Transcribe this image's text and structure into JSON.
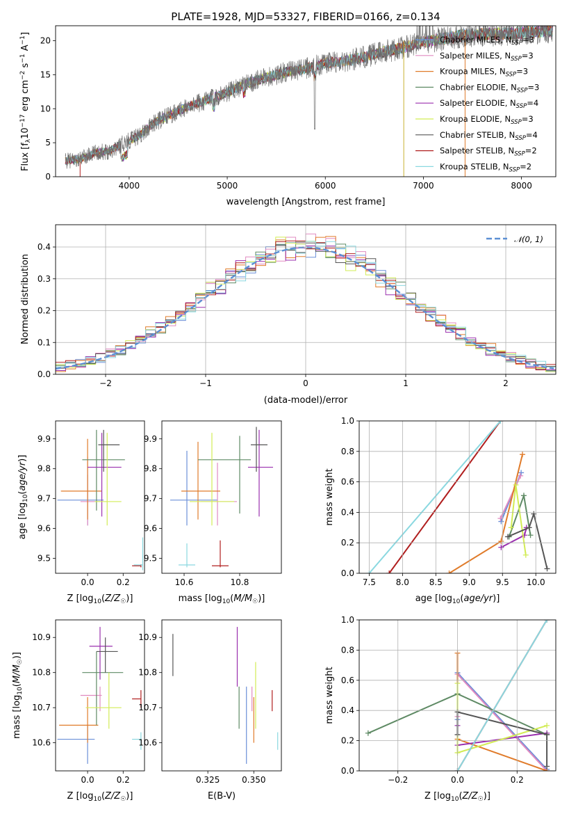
{
  "figure": {
    "title": "PLATE=1928, MJD=53327, FIBERID=0166, z=0.134"
  },
  "models": [
    {
      "name": "Chabrier MILES",
      "nssp": "3",
      "color": "#6a8fd8"
    },
    {
      "name": "Salpeter MILES",
      "nssp": "3",
      "color": "#e08ac0"
    },
    {
      "name": "Kroupa MILES",
      "nssp": "3",
      "color": "#e07b2a"
    },
    {
      "name": "Chabrier ELODIE",
      "nssp": "3",
      "color": "#5e8a64"
    },
    {
      "name": "Salpeter ELODIE",
      "nssp": "4",
      "color": "#9a2fae"
    },
    {
      "name": "Kroupa ELODIE",
      "nssp": "3",
      "color": "#d2ec55"
    },
    {
      "name": "Chabrier STELIB",
      "nssp": "4",
      "color": "#555555"
    },
    {
      "name": "Salpeter STELIB",
      "nssp": "2",
      "color": "#b01e1e"
    },
    {
      "name": "Kroupa STELIB",
      "nssp": "2",
      "color": "#8ad8e0"
    }
  ],
  "chart_data": [
    {
      "id": "spectrum",
      "type": "line",
      "xlabel": "wavelength [Angstrom, rest frame]",
      "ylabel": "Flux [f_λ 10^-17 erg cm^-2 s^-1 A^-1]",
      "xlim": [
        3250,
        8350
      ],
      "ylim": [
        0,
        22.2
      ],
      "xticks": [
        4000,
        5000,
        6000,
        7000,
        8000
      ],
      "yticks": [
        0,
        5,
        10,
        15,
        20
      ],
      "grid": false,
      "legend": "top-right",
      "continuum": {
        "x": [
          3350,
          3500,
          3650,
          3800,
          3950,
          4100,
          4250,
          4400,
          4600,
          4800,
          5000,
          5200,
          5400,
          5600,
          5800,
          6000,
          6200,
          6400,
          6600,
          6800,
          7000,
          7200,
          7400,
          7600,
          7800,
          8000,
          8200,
          8320
        ],
        "y": [
          2.3,
          2.6,
          3.5,
          3.8,
          5.0,
          6.0,
          7.8,
          9.0,
          10.3,
          11.3,
          12.4,
          13.7,
          14.6,
          15.4,
          15.9,
          16.7,
          17.0,
          17.6,
          18.4,
          19.0,
          19.8,
          20.3,
          20.8,
          21.0,
          21.0,
          21.2,
          21.4,
          21.5
        ]
      },
      "notes": [
        "data spectrum shown in grey with absorption features near 5890 Å; drop-outs near 6800 Å and 7420 Å"
      ]
    },
    {
      "id": "residuals",
      "type": "step-histogram",
      "xlabel": "(data-model)/error",
      "ylabel": "Normed distribution",
      "xlim": [
        -2.5,
        2.5
      ],
      "ylim": [
        0,
        0.47
      ],
      "xticks": [
        -2,
        -1,
        0,
        1,
        2
      ],
      "yticks": [
        0.0,
        0.1,
        0.2,
        0.3,
        0.4
      ],
      "grid": true,
      "legend": "top-right",
      "reference": {
        "label": "𝒩(0, 1)",
        "color": "#5b8fd4",
        "mean": 0,
        "sigma": 1
      },
      "bin_width": 0.1
    },
    {
      "id": "age-vs-Z",
      "type": "errorbar",
      "xlabel": "Z [log10(Z/Z☉)]",
      "ylabel": "age  [log10(age/yr)]",
      "xlim": [
        -0.18,
        0.32
      ],
      "ylim": [
        9.45,
        9.96
      ],
      "xticks": [
        0.0,
        0.2
      ],
      "yticks": [
        9.5,
        9.6,
        9.7,
        9.8,
        9.9
      ],
      "grid": false,
      "points": [
        {
          "model": 0,
          "x": 0.0,
          "xlo": -0.17,
          "xhi": 0.09,
          "y": 9.695,
          "ylo": 9.61,
          "yhi": 9.78
        },
        {
          "model": 1,
          "x": 0.0,
          "xlo": -0.04,
          "xhi": 0.08,
          "y": 9.69,
          "ylo": 9.61,
          "yhi": 9.84
        },
        {
          "model": 2,
          "x": 0.0,
          "xlo": -0.15,
          "xhi": 0.08,
          "y": 9.725,
          "ylo": 9.63,
          "yhi": 9.9
        },
        {
          "model": 3,
          "x": 0.05,
          "xlo": -0.03,
          "xhi": 0.21,
          "y": 9.83,
          "ylo": 9.66,
          "yhi": 9.93
        },
        {
          "model": 4,
          "x": 0.08,
          "xlo": 0.0,
          "xhi": 0.19,
          "y": 9.805,
          "ylo": 9.64,
          "yhi": 9.92
        },
        {
          "model": 5,
          "x": 0.11,
          "xlo": 0.04,
          "xhi": 0.19,
          "y": 9.69,
          "ylo": 9.61,
          "yhi": 9.92
        },
        {
          "model": 6,
          "x": 0.09,
          "xlo": 0.06,
          "xhi": 0.18,
          "y": 9.88,
          "ylo": 9.79,
          "yhi": 9.93
        },
        {
          "model": 7,
          "x": 0.3,
          "xlo": 0.25,
          "xhi": 0.3,
          "y": 9.475,
          "ylo": 9.47,
          "yhi": 9.48
        },
        {
          "model": 8,
          "x": 0.31,
          "xlo": 0.26,
          "xhi": 0.31,
          "y": 9.478,
          "ylo": 9.46,
          "yhi": 9.57
        }
      ]
    },
    {
      "id": "age-vs-mass",
      "type": "errorbar",
      "xlabel": "mass [log10(M/M☉)]",
      "ylabel": "",
      "xlim": [
        10.52,
        10.95
      ],
      "ylim": [
        9.45,
        9.96
      ],
      "xticks": [
        10.6,
        10.8
      ],
      "yticks": [
        9.5,
        9.6,
        9.7,
        9.8,
        9.9
      ],
      "grid": false,
      "points": [
        {
          "model": 0,
          "x": 10.61,
          "xlo": 10.55,
          "xhi": 10.72,
          "y": 9.695,
          "ylo": 9.61,
          "yhi": 9.86
        },
        {
          "model": 1,
          "x": 10.72,
          "xlo": 10.66,
          "xhi": 10.79,
          "y": 9.69,
          "ylo": 9.61,
          "yhi": 9.82
        },
        {
          "model": 2,
          "x": 10.65,
          "xlo": 10.59,
          "xhi": 10.73,
          "y": 9.725,
          "ylo": 9.63,
          "yhi": 9.89
        },
        {
          "model": 3,
          "x": 10.8,
          "xlo": 10.65,
          "xhi": 10.84,
          "y": 9.83,
          "ylo": 9.65,
          "yhi": 9.91
        },
        {
          "model": 4,
          "x": 10.87,
          "xlo": 10.83,
          "xhi": 10.92,
          "y": 9.805,
          "ylo": 9.64,
          "yhi": 9.93
        },
        {
          "model": 5,
          "x": 10.7,
          "xlo": 10.62,
          "xhi": 10.78,
          "y": 9.69,
          "ylo": 9.61,
          "yhi": 9.92
        },
        {
          "model": 6,
          "x": 10.86,
          "xlo": 10.84,
          "xhi": 10.9,
          "y": 9.88,
          "ylo": 9.79,
          "yhi": 9.94
        },
        {
          "model": 7,
          "x": 10.73,
          "xlo": 10.7,
          "xhi": 10.76,
          "y": 9.475,
          "ylo": 9.47,
          "yhi": 9.56
        },
        {
          "model": 8,
          "x": 10.61,
          "xlo": 10.58,
          "xhi": 10.64,
          "y": 9.478,
          "ylo": 9.47,
          "yhi": 9.55
        }
      ]
    },
    {
      "id": "weight-vs-age",
      "type": "line",
      "xlabel": "age  [log10(age/yr)]",
      "ylabel": "mass weight",
      "xlim": [
        7.35,
        10.3
      ],
      "ylim": [
        0,
        1.0
      ],
      "xticks": [
        7.5,
        8.0,
        8.5,
        9.0,
        9.5,
        10.0
      ],
      "yticks": [
        0.0,
        0.2,
        0.4,
        0.6,
        0.8,
        1.0
      ],
      "grid": true,
      "series": [
        {
          "model": 0,
          "x": [
            9.48,
            9.78
          ],
          "y": [
            0.34,
            0.66
          ]
        },
        {
          "model": 1,
          "x": [
            9.47,
            9.77
          ],
          "y": [
            0.36,
            0.64
          ]
        },
        {
          "model": 2,
          "x": [
            8.7,
            9.48,
            9.8
          ],
          "y": [
            0.0,
            0.21,
            0.78
          ]
        },
        {
          "model": 3,
          "x": [
            9.6,
            9.82,
            9.92
          ],
          "y": [
            0.24,
            0.51,
            0.25
          ]
        },
        {
          "model": 4,
          "x": [
            9.48,
            9.83,
            9.86
          ],
          "y": [
            0.17,
            0.25,
            0.3
          ]
        },
        {
          "model": 5,
          "x": [
            9.63,
            9.7,
            9.85
          ],
          "y": [
            0.3,
            0.58,
            0.12
          ]
        },
        {
          "model": 6,
          "x": [
            9.58,
            9.9,
            9.97,
            10.17
          ],
          "y": [
            0.24,
            0.3,
            0.39,
            0.03
          ]
        },
        {
          "model": 7,
          "x": [
            7.8,
            9.47
          ],
          "y": [
            0.0,
            1.0
          ]
        },
        {
          "model": 8,
          "x": [
            7.5,
            9.47
          ],
          "y": [
            0.0,
            1.0
          ]
        }
      ]
    },
    {
      "id": "mass-vs-Z",
      "type": "errorbar",
      "xlabel": "Z [log10(Z/Z☉)]",
      "ylabel": "mass [log10(M/M☉)]",
      "xlim": [
        -0.18,
        0.32
      ],
      "ylim": [
        10.52,
        10.95
      ],
      "xticks": [
        0.0,
        0.2
      ],
      "yticks": [
        10.6,
        10.7,
        10.8,
        10.9
      ],
      "grid": false,
      "points": [
        {
          "model": 0,
          "x": 0.0,
          "xlo": -0.17,
          "xhi": 0.04,
          "y": 10.61,
          "ylo": 10.54,
          "yhi": 10.65
        },
        {
          "model": 1,
          "x": 0.07,
          "xlo": -0.04,
          "xhi": 0.08,
          "y": 10.735,
          "ylo": 10.69,
          "yhi": 10.76
        },
        {
          "model": 2,
          "x": 0.0,
          "xlo": -0.16,
          "xhi": 0.06,
          "y": 10.65,
          "ylo": 10.6,
          "yhi": 10.73
        },
        {
          "model": 3,
          "x": 0.05,
          "xlo": -0.03,
          "xhi": 0.2,
          "y": 10.8,
          "ylo": 10.65,
          "yhi": 10.86
        },
        {
          "model": 4,
          "x": 0.07,
          "xlo": 0.01,
          "xhi": 0.14,
          "y": 10.875,
          "ylo": 10.78,
          "yhi": 10.93
        },
        {
          "model": 5,
          "x": 0.12,
          "xlo": -0.01,
          "xhi": 0.19,
          "y": 10.7,
          "ylo": 10.64,
          "yhi": 10.8
        },
        {
          "model": 6,
          "x": 0.1,
          "xlo": 0.05,
          "xhi": 0.17,
          "y": 10.86,
          "ylo": 10.8,
          "yhi": 10.9
        },
        {
          "model": 7,
          "x": 0.3,
          "xlo": 0.25,
          "xhi": 0.3,
          "y": 10.725,
          "ylo": 10.7,
          "yhi": 10.75
        },
        {
          "model": 8,
          "x": 0.3,
          "xlo": 0.25,
          "xhi": 0.3,
          "y": 10.61,
          "ylo": 10.58,
          "yhi": 10.63
        }
      ]
    },
    {
      "id": "mass-vs-ebv",
      "type": "errorbar",
      "xlabel": "E(B-V)",
      "ylabel": "",
      "xlim": [
        0.3,
        0.365
      ],
      "ylim": [
        10.52,
        10.95
      ],
      "xticks": [
        0.325,
        0.35
      ],
      "yticks": [
        10.6,
        10.7,
        10.8,
        10.9
      ],
      "grid": false,
      "points": [
        {
          "model": 0,
          "x": 0.346,
          "y": 10.61,
          "ylo": 10.54,
          "yhi": 10.76
        },
        {
          "model": 1,
          "x": 0.349,
          "y": 10.74,
          "ylo": 10.69,
          "yhi": 10.76
        },
        {
          "model": 2,
          "x": 0.35,
          "y": 10.65,
          "ylo": 10.6,
          "yhi": 10.73
        },
        {
          "model": 3,
          "x": 0.342,
          "y": 10.72,
          "ylo": 10.64,
          "yhi": 10.76
        },
        {
          "model": 4,
          "x": 0.341,
          "y": 10.84,
          "ylo": 10.76,
          "yhi": 10.93
        },
        {
          "model": 5,
          "x": 0.351,
          "y": 10.73,
          "ylo": 10.64,
          "yhi": 10.83
        },
        {
          "model": 6,
          "x": 0.306,
          "y": 10.85,
          "ylo": 10.79,
          "yhi": 10.91
        },
        {
          "model": 7,
          "x": 0.36,
          "y": 10.725,
          "ylo": 10.69,
          "yhi": 10.75
        },
        {
          "model": 8,
          "x": 0.363,
          "y": 10.61,
          "ylo": 10.58,
          "yhi": 10.63
        }
      ]
    },
    {
      "id": "weight-vs-Z",
      "type": "line",
      "xlabel": "Z [log10(Z/Z☉)]",
      "ylabel": "mass weight",
      "xlim": [
        -0.33,
        0.33
      ],
      "ylim": [
        0,
        1.0
      ],
      "xticks": [
        -0.2,
        0.0,
        0.2
      ],
      "yticks": [
        0.0,
        0.2,
        0.4,
        0.6,
        0.8,
        1.0
      ],
      "grid": true,
      "series": [
        {
          "model": 0,
          "x": [
            0.0,
            0.0,
            0.3
          ],
          "y": [
            0.34,
            0.65,
            0.01
          ]
        },
        {
          "model": 1,
          "x": [
            0.0,
            0.0,
            0.3
          ],
          "y": [
            0.36,
            0.64,
            0.0
          ]
        },
        {
          "model": 2,
          "x": [
            0.0,
            0.0,
            0.3
          ],
          "y": [
            0.78,
            0.21,
            0.0
          ]
        },
        {
          "model": 3,
          "x": [
            -0.3,
            0.0,
            0.3
          ],
          "y": [
            0.25,
            0.51,
            0.24
          ]
        },
        {
          "model": 4,
          "x": [
            0.0,
            0.0,
            0.3
          ],
          "y": [
            0.3,
            0.17,
            0.25
          ]
        },
        {
          "model": 5,
          "x": [
            0.0,
            0.0,
            0.3
          ],
          "y": [
            0.58,
            0.12,
            0.3
          ]
        },
        {
          "model": 6,
          "x": [
            0.0,
            0.0,
            0.3,
            0.3
          ],
          "y": [
            0.24,
            0.39,
            0.24,
            0.03
          ]
        },
        {
          "model": 7,
          "x": [
            0.0,
            0.3
          ],
          "y": [
            0.0,
            1.0
          ]
        },
        {
          "model": 8,
          "x": [
            0.0,
            0.3
          ],
          "y": [
            0.0,
            1.0
          ]
        }
      ]
    }
  ]
}
